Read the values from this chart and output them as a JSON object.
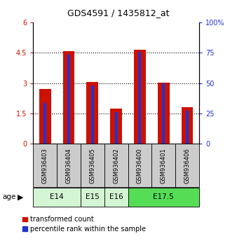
{
  "title": "GDS4591 / 1435812_at",
  "samples": [
    "GSM936403",
    "GSM936404",
    "GSM936405",
    "GSM936402",
    "GSM936400",
    "GSM936401",
    "GSM936406"
  ],
  "red_values": [
    2.72,
    4.58,
    3.06,
    1.74,
    4.65,
    3.01,
    1.8
  ],
  "blue_values": [
    2.02,
    4.4,
    2.87,
    1.56,
    4.55,
    2.97,
    1.65
  ],
  "left_ylim": [
    0,
    6
  ],
  "left_yticks": [
    0,
    1.5,
    3,
    4.5,
    6
  ],
  "right_ylim": [
    0,
    100
  ],
  "right_yticks": [
    0,
    25,
    50,
    75,
    100
  ],
  "age_groups": [
    {
      "label": "E14",
      "start": 0,
      "end": 2,
      "color": "#d4f5d4"
    },
    {
      "label": "E15",
      "start": 2,
      "end": 3,
      "color": "#d4f5d4"
    },
    {
      "label": "E16",
      "start": 3,
      "end": 4,
      "color": "#d4f5d4"
    },
    {
      "label": "E17.5",
      "start": 4,
      "end": 7,
      "color": "#55dd55"
    }
  ],
  "red_color": "#cc1100",
  "blue_color": "#2233cc",
  "sample_bg_color": "#cccccc",
  "legend_red": "transformed count",
  "legend_blue": "percentile rank within the sample",
  "title_fontsize": 9,
  "tick_fontsize": 7,
  "bar_width": 0.5,
  "blue_bar_width": 0.12
}
